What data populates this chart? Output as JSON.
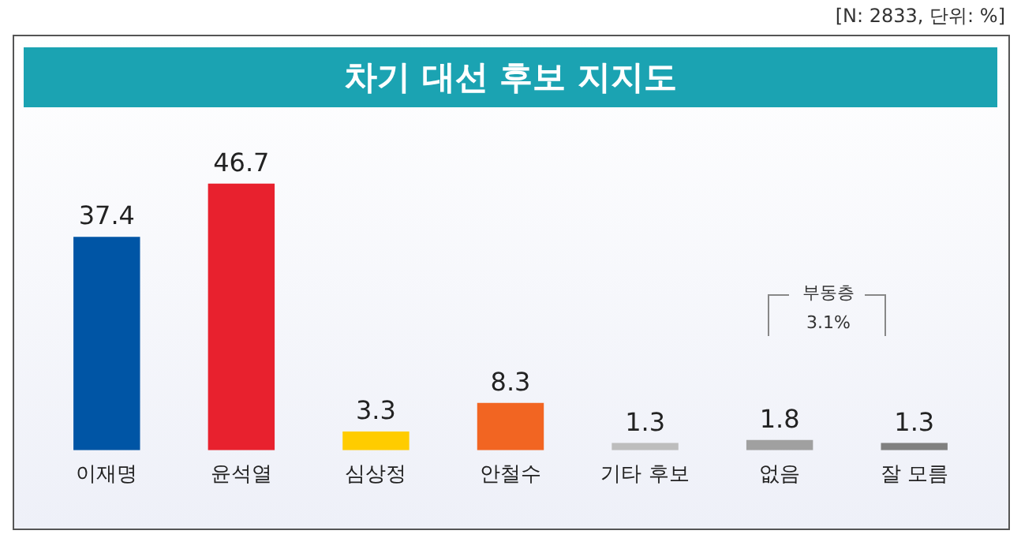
{
  "chart_data": {
    "type": "bar",
    "title": "차기 대선 후보 지지도",
    "categories": [
      "이재명",
      "윤석열",
      "심상정",
      "안철수",
      "기타 후보",
      "없음",
      "잘 모름"
    ],
    "values": [
      37.4,
      46.7,
      3.3,
      8.3,
      1.3,
      1.8,
      1.3
    ],
    "colors": [
      "#0055a5",
      "#e8212e",
      "#ffcc00",
      "#f26522",
      "#bdbdbd",
      "#a0a0a0",
      "#808080"
    ],
    "data_labels": true,
    "grid": false,
    "legend": false,
    "annotations": [
      "[N: 2833, 단위: %]",
      "부동층",
      "3.1%"
    ]
  }
}
